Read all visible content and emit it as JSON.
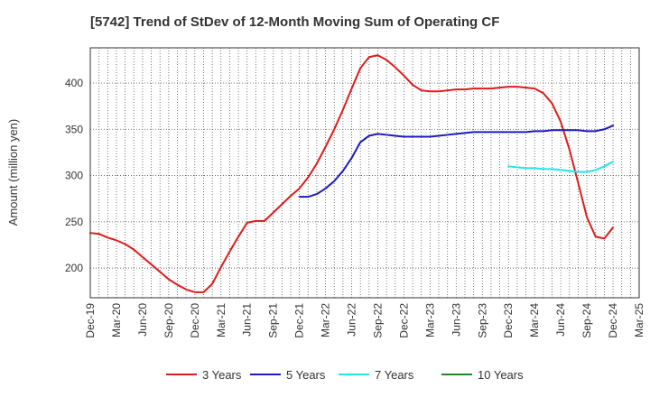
{
  "chart_data": {
    "type": "line",
    "title": "[5742]  Trend of StDev of 12-Month Moving Sum of Operating CF",
    "xlabel": "",
    "ylabel": "Amount (million yen)",
    "ylim": [
      168,
      438
    ],
    "yticks": [
      200,
      250,
      300,
      350,
      400
    ],
    "x_start": "Dec-19",
    "x_end": "Mar-25",
    "xticks": [
      "Dec-19",
      "Mar-20",
      "Jun-20",
      "Sep-20",
      "Dec-20",
      "Mar-21",
      "Jun-21",
      "Sep-21",
      "Dec-21",
      "Mar-22",
      "Jun-22",
      "Sep-22",
      "Dec-22",
      "Mar-23",
      "Jun-23",
      "Sep-23",
      "Dec-23",
      "Mar-24",
      "Jun-24",
      "Sep-24",
      "Dec-24",
      "Mar-25"
    ],
    "grid": true,
    "legend_position": "bottom",
    "series": [
      {
        "name": "3 Years",
        "color": "#dd1c1c",
        "start": "Dec-19",
        "values": [
          238,
          237,
          233,
          230,
          226,
          220,
          212,
          204,
          196,
          188,
          182,
          177,
          174,
          174,
          183,
          201,
          218,
          234,
          249,
          251,
          251,
          260,
          269,
          278,
          286,
          298,
          313,
          331,
          350,
          371,
          394,
          416,
          428,
          430,
          425,
          417,
          408,
          398,
          392,
          391,
          391,
          392,
          393,
          393,
          394,
          394,
          394,
          395,
          396,
          396,
          395,
          394,
          389,
          378,
          358,
          328,
          292,
          255,
          234,
          232,
          244
        ]
      },
      {
        "name": "5 Years",
        "color": "#1c1cbb",
        "start": "Dec-21",
        "values": [
          277,
          277,
          280,
          286,
          294,
          305,
          319,
          336,
          343,
          345,
          344,
          343,
          342,
          342,
          342,
          342,
          343,
          344,
          345,
          346,
          347,
          347,
          347,
          347,
          347,
          347,
          347,
          348,
          348,
          349,
          349,
          349,
          349,
          348,
          348,
          350,
          354
        ]
      },
      {
        "name": "7 Years",
        "color": "#22e6e6",
        "start": "Dec-23",
        "values": [
          310,
          309,
          308,
          308,
          307,
          307,
          306,
          305,
          304,
          304,
          306,
          310,
          315
        ]
      },
      {
        "name": "10 Years",
        "color": "#1e8c1e",
        "start": "Sep-24",
        "values": []
      }
    ]
  }
}
